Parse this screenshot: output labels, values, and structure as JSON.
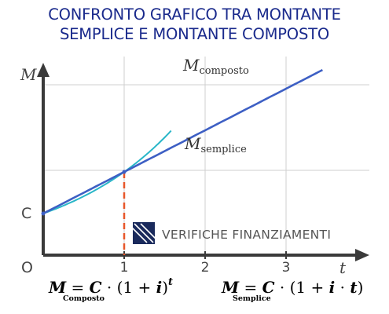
{
  "title": {
    "line1": "CONFRONTO GRAFICO TRA MONTANTE",
    "line2": "SEMPLICE E MONTANTE COMPOSTO"
  },
  "chart_data": {
    "type": "line",
    "title": "CONFRONTO GRAFICO TRA MONTANTE SEMPLICE E MONTANTE COMPOSTO",
    "xlabel": "t",
    "ylabel": "M",
    "origin_label": "O",
    "y_intercept_label": "C",
    "x_ticks": [
      "1",
      "2",
      "3"
    ],
    "xlim": [
      0,
      3.9
    ],
    "ylim": [
      0,
      4
    ],
    "grid": true,
    "series": [
      {
        "name": "M composto",
        "base": "M",
        "subscript": "composto",
        "kind": "exponential",
        "C": 1,
        "rate": 1,
        "x_end": 1.58,
        "color": "#29b6c8"
      },
      {
        "name": "M semplice",
        "base": "M",
        "subscript": "semplice",
        "kind": "linear",
        "C": 1,
        "rate": 1,
        "x_end": 3.45,
        "color": "#3d5fc4"
      }
    ],
    "annotations": [
      {
        "type": "vertical-dashed",
        "x": 1,
        "color": "#e8572a"
      }
    ]
  },
  "watermark": {
    "text": "VERIFICHE FINANZIAMENTI",
    "color": "#1a2a5c"
  },
  "formulas": {
    "composto": {
      "text": "M = C · (1 + i)",
      "exp": "t",
      "label": "Composto"
    },
    "semplice": {
      "text": "M = C · (1 + i · t)",
      "label": "Semplice"
    }
  }
}
